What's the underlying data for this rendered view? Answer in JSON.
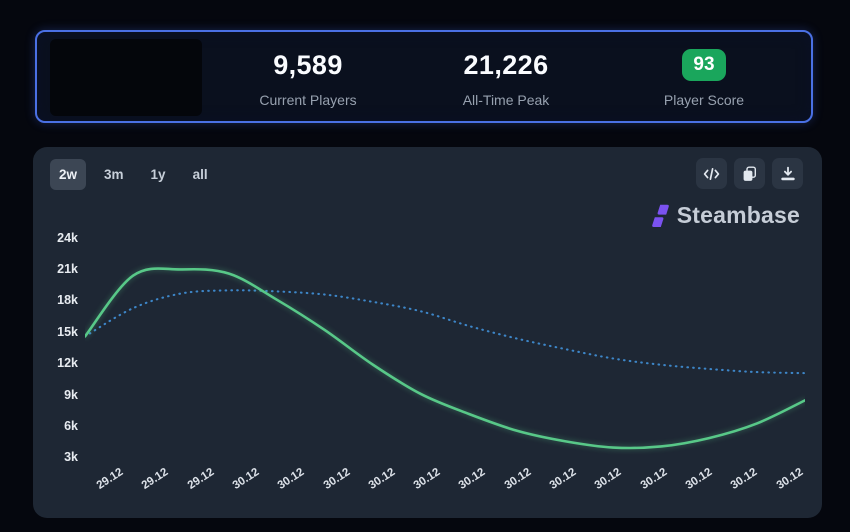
{
  "page": {
    "background": "#05070e"
  },
  "stats_card": {
    "border_color": "#4a70e4",
    "stats": [
      {
        "value": "9,589",
        "label": "Current Players"
      },
      {
        "value": "21,226",
        "label": "All-Time Peak"
      },
      {
        "value": "93",
        "label": "Player Score",
        "badge_color": "#1aa65c"
      }
    ]
  },
  "toolbar": {
    "ranges": [
      {
        "label": "2w",
        "selected": true
      },
      {
        "label": "3m",
        "selected": false
      },
      {
        "label": "1y",
        "selected": false
      },
      {
        "label": "all",
        "selected": false
      }
    ],
    "actions": [
      {
        "name": "embed-code-button",
        "icon": "code-icon"
      },
      {
        "name": "copy-button",
        "icon": "copy-icon"
      },
      {
        "name": "download-button",
        "icon": "download-icon"
      }
    ]
  },
  "watermark": {
    "text": "Steambase",
    "logo_color": "#7b52f0"
  },
  "chart_data": {
    "type": "line",
    "title": "",
    "xlabel": "",
    "ylabel": "",
    "unit": "thousands of players",
    "grid": false,
    "legend": "none",
    "ylim_k": [
      3,
      24
    ],
    "y_ticks": [
      "24k",
      "21k",
      "18k",
      "15k",
      "12k",
      "9k",
      "6k",
      "3k"
    ],
    "x_labels": [
      "29.12",
      "29.12",
      "29.12",
      "30.12",
      "30.12",
      "30.12",
      "30.12",
      "30.12",
      "30.12",
      "30.12",
      "30.12",
      "30.12",
      "30.12",
      "30.12",
      "30.12",
      "30.12"
    ],
    "series": [
      {
        "name": "blue-dotted-line",
        "color": "#3d86c8",
        "style": "dotted",
        "values_k": [
          14.6,
          17.3,
          18.7,
          19.0,
          18.9,
          18.6,
          17.9,
          17.0,
          15.6,
          14.4,
          13.4,
          12.5,
          11.9,
          11.5,
          11.2,
          11.1
        ]
      },
      {
        "name": "green-solid-line",
        "color": "#58c888",
        "style": "solid",
        "values_k": [
          14.6,
          20.4,
          21.0,
          20.6,
          18.1,
          15.2,
          11.9,
          9.1,
          7.2,
          5.6,
          4.6,
          4.0,
          4.1,
          4.9,
          6.3,
          8.5
        ]
      }
    ]
  }
}
